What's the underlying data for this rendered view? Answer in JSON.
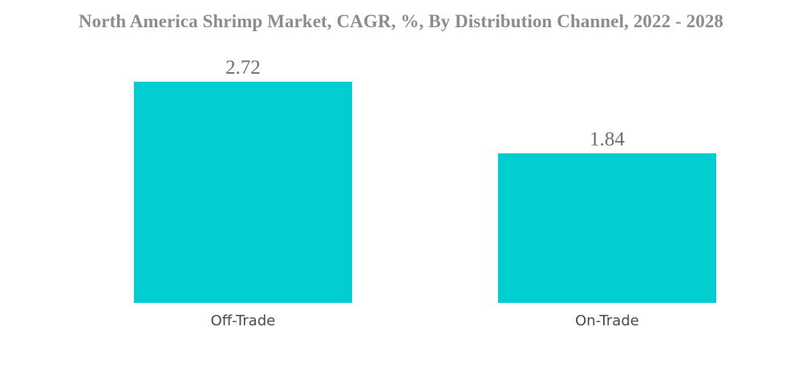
{
  "chart_data": {
    "type": "bar",
    "title": "North America Shrimp Market, CAGR, %, By Distribution Channel, 2022 - 2028",
    "categories": [
      "Off-Trade",
      "On-Trade"
    ],
    "values": [
      2.72,
      1.84
    ],
    "value_labels": [
      "2.72",
      "1.84"
    ],
    "xlabel": "",
    "ylabel": "",
    "ylim": [
      0,
      2.72
    ],
    "bar_color": "#00CED1",
    "grid": false,
    "legend": "none"
  }
}
